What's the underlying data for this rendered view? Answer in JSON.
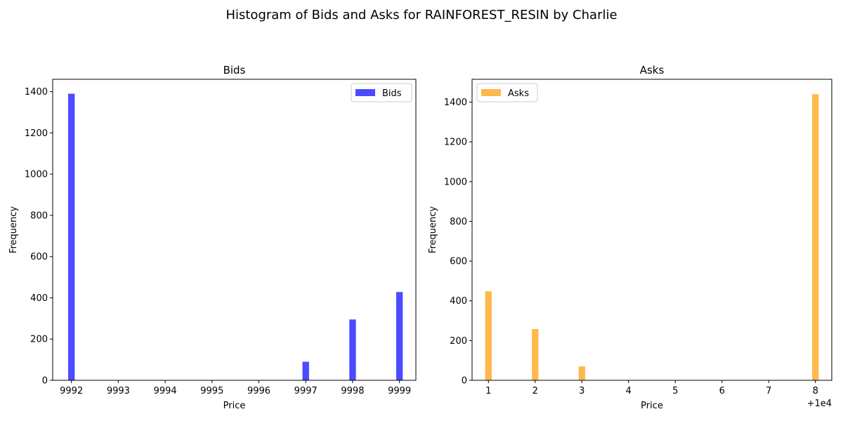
{
  "figure": {
    "title": "Histogram of Bids and Asks for RAINFOREST_RESIN by Charlie"
  },
  "chart_data": [
    {
      "type": "bar",
      "title": "Bids",
      "xlabel": "Price",
      "ylabel": "Frequency",
      "xlim": [
        9991.6,
        9999.35
      ],
      "ylim": [
        0,
        1460
      ],
      "xticks": [
        9992,
        9993,
        9994,
        9995,
        9996,
        9997,
        9998,
        9999
      ],
      "xtick_labels": [
        "9992",
        "9993",
        "9994",
        "9995",
        "9996",
        "9997",
        "9998",
        "9999"
      ],
      "yticks": [
        0,
        200,
        400,
        600,
        800,
        1000,
        1200,
        1400
      ],
      "ytick_labels": [
        "0",
        "200",
        "400",
        "600",
        "800",
        "1000",
        "1200",
        "1400"
      ],
      "bin_width": 0.14,
      "x": [
        9992,
        9997,
        9998,
        9999
      ],
      "values": [
        1390,
        90,
        295,
        428
      ],
      "color": "#4b4bff",
      "series": [
        {
          "name": "Bids",
          "values": [
            1390,
            90,
            295,
            428
          ]
        }
      ],
      "legend": {
        "position": "top-right"
      },
      "offset_text": ""
    },
    {
      "type": "bar",
      "title": "Asks",
      "xlabel": "Price",
      "ylabel": "Frequency",
      "xlim": [
        10000.65,
        10008.35
      ],
      "ylim": [
        0,
        1515
      ],
      "xticks": [
        10001,
        10002,
        10003,
        10004,
        10005,
        10006,
        10007,
        10008
      ],
      "xtick_labels": [
        "1",
        "2",
        "3",
        "4",
        "5",
        "6",
        "7",
        "8"
      ],
      "yticks": [
        0,
        200,
        400,
        600,
        800,
        1000,
        1200,
        1400
      ],
      "ytick_labels": [
        "0",
        "200",
        "400",
        "600",
        "800",
        "1000",
        "1200",
        "1400"
      ],
      "bin_width": 0.14,
      "x": [
        10001,
        10002,
        10003,
        10008
      ],
      "values": [
        448,
        258,
        70,
        1440
      ],
      "color": "#ffb84b",
      "series": [
        {
          "name": "Asks",
          "values": [
            448,
            258,
            70,
            1440
          ]
        }
      ],
      "legend": {
        "position": "top-left"
      },
      "offset_text": "+1e4"
    }
  ]
}
